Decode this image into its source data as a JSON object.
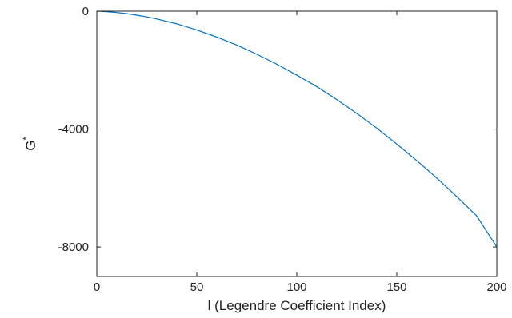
{
  "chart_data": {
    "type": "line",
    "title": "",
    "xlabel": "l (Legendre Coefficient Index)",
    "ylabel": "G",
    "ylabel_superscript": "*",
    "xlim": [
      0,
      200
    ],
    "ylim": [
      -9000,
      0
    ],
    "xticks": [
      0,
      50,
      100,
      150,
      200
    ],
    "xtick_labels": [
      "0",
      "50",
      "100",
      "150",
      "200"
    ],
    "yticks": [
      0,
      -4000,
      -8000
    ],
    "ytick_labels": [
      "0",
      "-4000",
      "-8000"
    ],
    "grid": false,
    "line_color": "#0072BD",
    "series": [
      {
        "x": [
          0,
          5,
          10,
          15,
          20,
          25,
          30,
          40,
          50,
          60,
          70,
          80,
          90,
          100,
          110,
          120,
          130,
          140,
          150,
          160,
          170,
          180,
          190,
          200
        ],
        "y": [
          0,
          -16,
          -45,
          -85,
          -135,
          -195,
          -265,
          -430,
          -640,
          -880,
          -1150,
          -1460,
          -1800,
          -2170,
          -2560,
          -3000,
          -3470,
          -3970,
          -4510,
          -5070,
          -5660,
          -6290,
          -6950,
          -8000
        ]
      }
    ]
  }
}
